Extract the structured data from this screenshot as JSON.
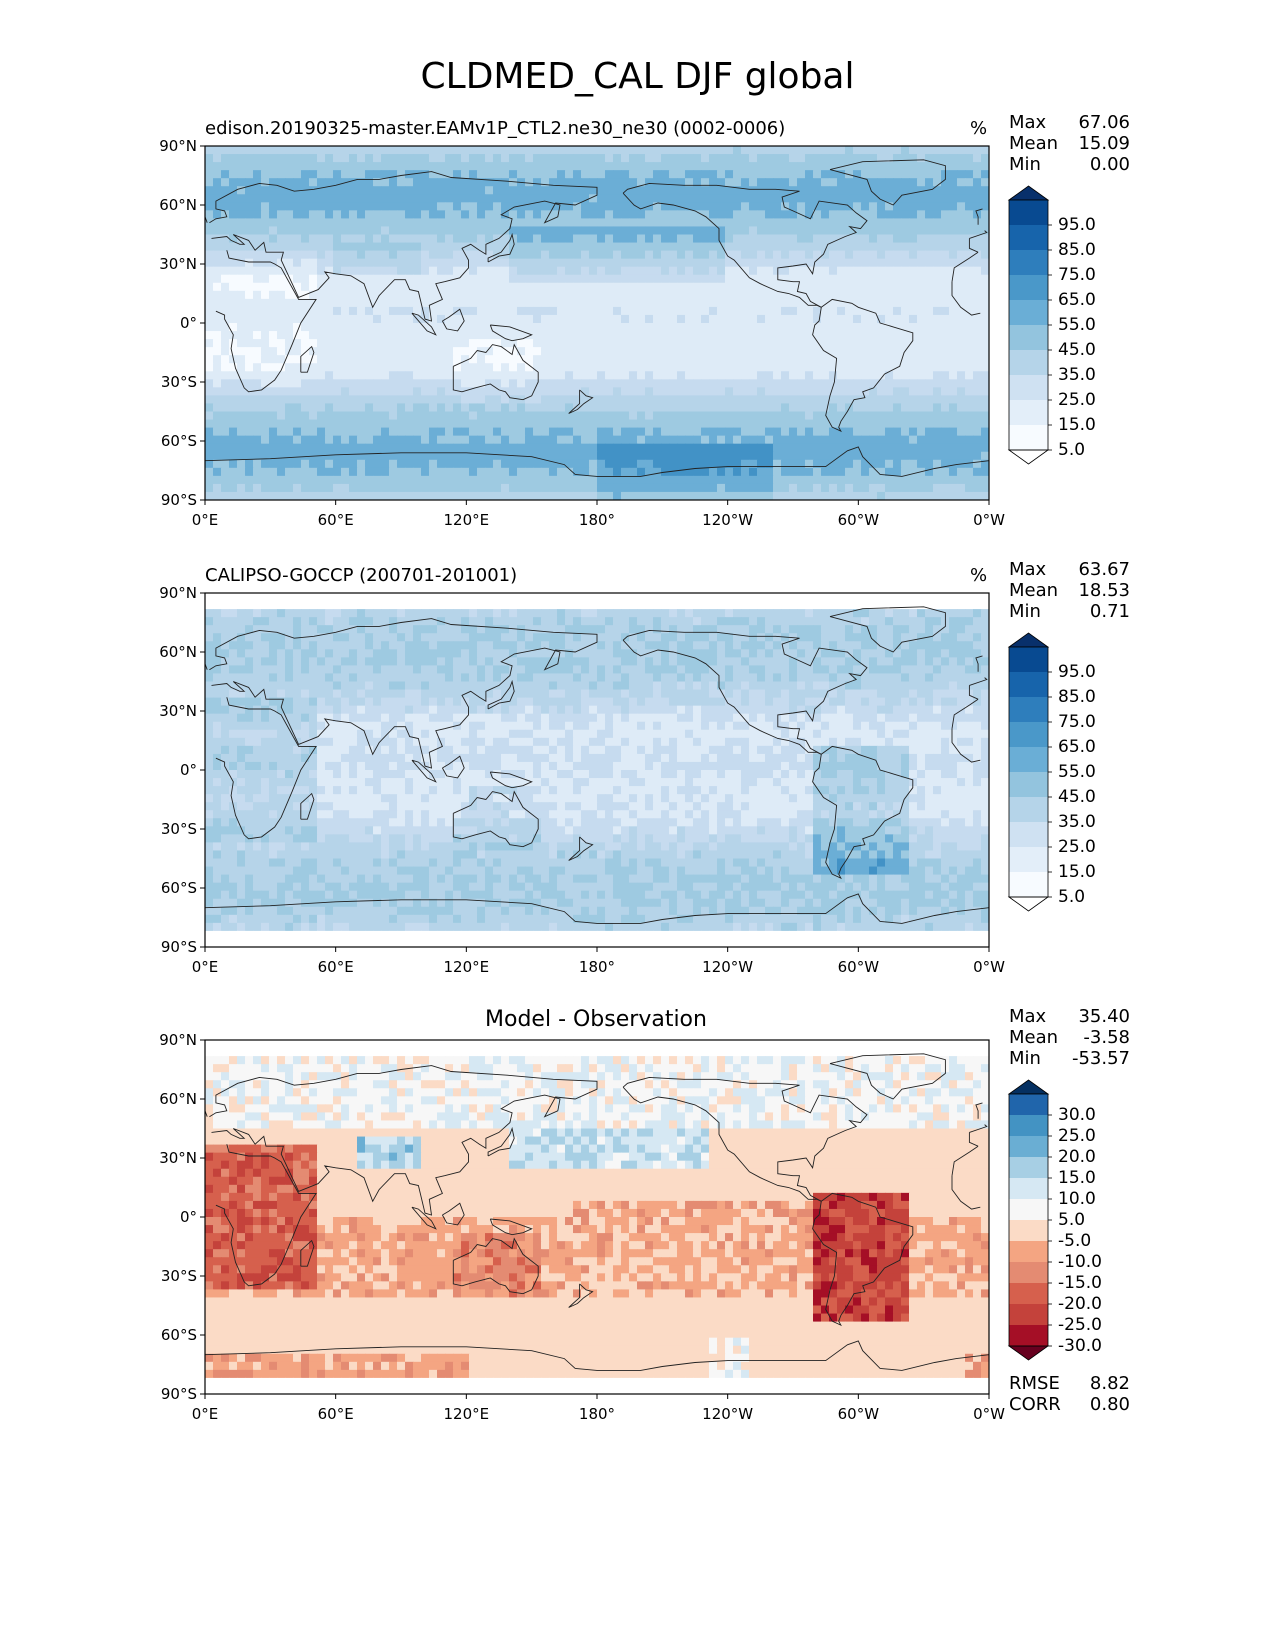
{
  "figure_title": "CLDMED_CAL DJF global",
  "lat_ticks": [
    "90°N",
    "60°N",
    "30°N",
    "0°",
    "30°S",
    "60°S",
    "90°S"
  ],
  "lon_ticks": [
    "0°E",
    "60°E",
    "120°E",
    "180°",
    "120°W",
    "60°W",
    "0°W"
  ],
  "stat_labels": {
    "max": "Max",
    "mean": "Mean",
    "min": "Min",
    "rmse": "RMSE",
    "corr": "CORR"
  },
  "colors": {
    "blues": [
      "#f7fbff",
      "#deebf7",
      "#c6dbef",
      "#b6d4e9",
      "#9ecae1",
      "#6baed6",
      "#4292c6",
      "#2171b5",
      "#08519c",
      "#08306b"
    ],
    "diverging": [
      "#67001f",
      "#a50f26",
      "#c4423b",
      "#d6604d",
      "#e48b72",
      "#f4a582",
      "#fbdbc6",
      "#f7f7f7",
      "#d6e8f3",
      "#a7cfe4",
      "#6aaed3",
      "#4393c3",
      "#2065ab",
      "#053061"
    ]
  },
  "panels": [
    {
      "title": "edison.20190325-master.EAMv1P_CTL2.ne30_ne30 (0002-0006)",
      "units": "%",
      "stats": {
        "max": "67.06",
        "mean": "15.09",
        "min": "0.00"
      },
      "colorbar_levels": [
        "95.0",
        "85.0",
        "75.0",
        "65.0",
        "55.0",
        "45.0",
        "35.0",
        "25.0",
        "15.0",
        "5.0"
      ]
    },
    {
      "title": "CALIPSO-GOCCP (200701-201001)",
      "units": "%",
      "stats": {
        "max": "63.67",
        "mean": "18.53",
        "min": "0.71"
      },
      "colorbar_levels": [
        "95.0",
        "85.0",
        "75.0",
        "65.0",
        "55.0",
        "45.0",
        "35.0",
        "25.0",
        "15.0",
        "5.0"
      ]
    },
    {
      "title": "Model - Observation",
      "stats": {
        "max": "35.40",
        "mean": "-3.58",
        "min": "-53.57",
        "rmse": "8.82",
        "corr": "0.80"
      },
      "colorbar_levels": [
        "30.0",
        "25.0",
        "20.0",
        "15.0",
        "10.0",
        "5.0",
        "-5.0",
        "-10.0",
        "-15.0",
        "-20.0",
        "-25.0",
        "-30.0"
      ]
    }
  ]
}
